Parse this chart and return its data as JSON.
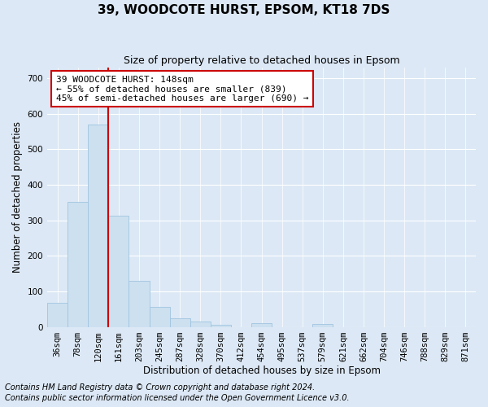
{
  "title": "39, WOODCOTE HURST, EPSOM, KT18 7DS",
  "subtitle": "Size of property relative to detached houses in Epsom",
  "xlabel": "Distribution of detached houses by size in Epsom",
  "ylabel": "Number of detached properties",
  "bar_labels": [
    "36sqm",
    "78sqm",
    "120sqm",
    "161sqm",
    "203sqm",
    "245sqm",
    "287sqm",
    "328sqm",
    "370sqm",
    "412sqm",
    "454sqm",
    "495sqm",
    "537sqm",
    "579sqm",
    "621sqm",
    "662sqm",
    "704sqm",
    "746sqm",
    "788sqm",
    "829sqm",
    "871sqm"
  ],
  "bar_values": [
    68,
    352,
    570,
    313,
    130,
    57,
    25,
    14,
    7,
    0,
    10,
    0,
    0,
    9,
    0,
    0,
    0,
    0,
    0,
    0,
    0
  ],
  "bar_color": "#cce0f0",
  "bar_edge_color": "#a0c4e0",
  "vline_x": 2.5,
  "vline_color": "#cc0000",
  "ylim": [
    0,
    730
  ],
  "yticks": [
    0,
    100,
    200,
    300,
    400,
    500,
    600,
    700
  ],
  "annotation_title": "39 WOODCOTE HURST: 148sqm",
  "annotation_line1": "← 55% of detached houses are smaller (839)",
  "annotation_line2": "45% of semi-detached houses are larger (690) →",
  "annotation_box_color": "#ffffff",
  "annotation_border_color": "#cc0000",
  "footer_line1": "Contains HM Land Registry data © Crown copyright and database right 2024.",
  "footer_line2": "Contains public sector information licensed under the Open Government Licence v3.0.",
  "background_color": "#dce8f5",
  "grid_color": "#ffffff",
  "title_fontsize": 11,
  "subtitle_fontsize": 9,
  "axis_label_fontsize": 8.5,
  "tick_fontsize": 7.5,
  "footer_fontsize": 7,
  "annotation_fontsize": 8
}
